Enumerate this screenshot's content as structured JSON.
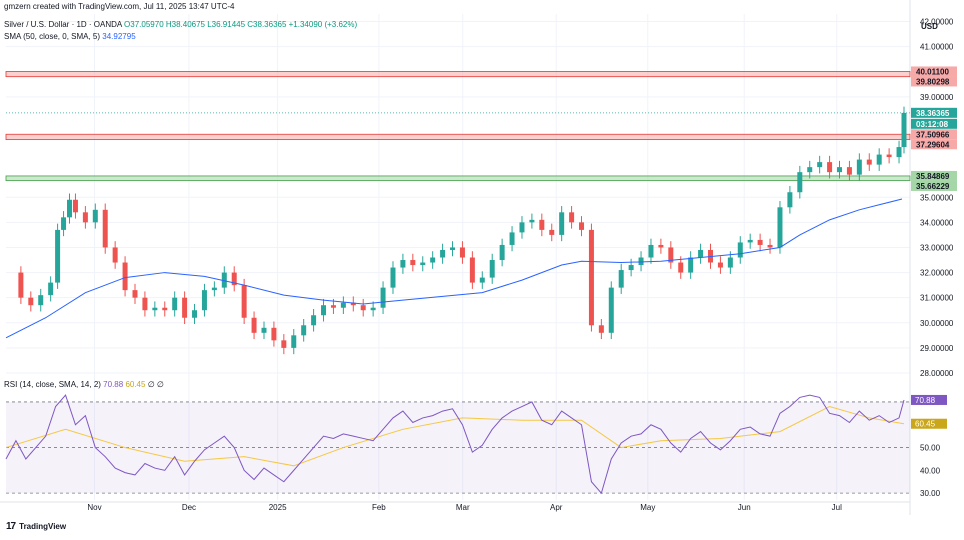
{
  "header": {
    "attribution": "gmzern created with TradingView.com, Jul 11, 2025 13:47 UTC-4",
    "symbol": "Silver / U.S. Dollar · 1D · OANDA",
    "ohlc": "O37.05970 H38.40675 L36.91445 C38.36365 +1.34090 (+3.62%)",
    "sma_label": "SMA (50, close, 0, SMA, 5)",
    "sma_value": "34.92795",
    "rsi_label": "RSI (14, close, SMA, 14, 2)",
    "rsi_value": "70.88",
    "rsi_ma_value": "60.45",
    "rsi_extra": "∅ ∅"
  },
  "currency": "USD",
  "footer": {
    "brand": "TradingView"
  },
  "colors": {
    "up": "#26a69a",
    "down": "#ef5350",
    "sma": "#2962ff",
    "rsi": "#7e57c2",
    "rsi_ma": "#f5c842",
    "resistance": "#f7a9a8",
    "support": "#a5d6a7"
  },
  "chart_data": {
    "type": "candlestick",
    "symbol": "Silver / U.S. Dollar · 1D · OANDA",
    "y_ticks": [
      "42.00000",
      "41.00000",
      "39.00000",
      "35.00000",
      "34.00000",
      "33.00000",
      "32.00000",
      "31.00000",
      "30.00000",
      "29.00000",
      "28.00000"
    ],
    "y_range": [
      27.8,
      42.3
    ],
    "x_labels": [
      "Nov",
      "Dec",
      "2025",
      "Feb",
      "Mar",
      "Apr",
      "May",
      "Jun",
      "Jul"
    ],
    "price_tags": [
      {
        "label": "40.01100",
        "kind": "resistance"
      },
      {
        "label": "39.80298",
        "kind": "resistance"
      },
      {
        "label": "38.36365",
        "kind": "current"
      },
      {
        "label": "03:12:08",
        "kind": "countdown"
      },
      {
        "label": "37.50966",
        "kind": "resistance"
      },
      {
        "label": "37.29604",
        "kind": "resistance"
      },
      {
        "label": "35.84869",
        "kind": "support"
      },
      {
        "label": "35.66229",
        "kind": "support"
      }
    ],
    "zones": [
      {
        "kind": "resistance",
        "low": 39.80298,
        "high": 40.011
      },
      {
        "kind": "resistance",
        "low": 37.29604,
        "high": 37.50966
      },
      {
        "kind": "support",
        "low": 35.66229,
        "high": 35.84869
      }
    ],
    "sma50": [
      [
        0,
        29.4
      ],
      [
        40,
        30.2
      ],
      [
        80,
        31.2
      ],
      [
        120,
        31.8
      ],
      [
        160,
        32.0
      ],
      [
        200,
        31.85
      ],
      [
        240,
        31.5
      ],
      [
        280,
        31.1
      ],
      [
        320,
        30.9
      ],
      [
        360,
        30.75
      ],
      [
        400,
        30.9
      ],
      [
        440,
        31.05
      ],
      [
        480,
        31.2
      ],
      [
        520,
        31.7
      ],
      [
        560,
        32.3
      ],
      [
        580,
        32.45
      ],
      [
        620,
        32.4
      ],
      [
        660,
        32.45
      ],
      [
        700,
        32.6
      ],
      [
        740,
        32.75
      ],
      [
        780,
        33.0
      ],
      [
        800,
        33.5
      ],
      [
        830,
        34.1
      ],
      [
        860,
        34.5
      ],
      [
        880,
        34.7
      ],
      [
        903,
        34.93
      ]
    ],
    "close": [
      [
        0,
        32.0
      ],
      [
        15,
        31.0
      ],
      [
        25,
        30.7
      ],
      [
        35,
        31.1
      ],
      [
        45,
        31.6
      ],
      [
        52,
        33.7
      ],
      [
        58,
        34.2
      ],
      [
        64,
        34.9
      ],
      [
        70,
        34.4
      ],
      [
        80,
        34.0
      ],
      [
        90,
        34.5
      ],
      [
        100,
        33.0
      ],
      [
        110,
        32.4
      ],
      [
        120,
        31.3
      ],
      [
        130,
        31.0
      ],
      [
        140,
        30.5
      ],
      [
        150,
        30.6
      ],
      [
        160,
        30.5
      ],
      [
        170,
        31.0
      ],
      [
        180,
        30.2
      ],
      [
        190,
        30.5
      ],
      [
        200,
        31.3
      ],
      [
        210,
        31.4
      ],
      [
        220,
        32.0
      ],
      [
        230,
        31.5
      ],
      [
        240,
        30.2
      ],
      [
        250,
        29.6
      ],
      [
        260,
        29.8
      ],
      [
        270,
        29.3
      ],
      [
        280,
        29.0
      ],
      [
        290,
        29.5
      ],
      [
        300,
        29.9
      ],
      [
        310,
        30.3
      ],
      [
        320,
        30.7
      ],
      [
        330,
        30.6
      ],
      [
        340,
        30.8
      ],
      [
        350,
        30.7
      ],
      [
        360,
        30.5
      ],
      [
        370,
        30.6
      ],
      [
        380,
        31.4
      ],
      [
        390,
        32.2
      ],
      [
        400,
        32.5
      ],
      [
        410,
        32.3
      ],
      [
        420,
        32.4
      ],
      [
        430,
        32.6
      ],
      [
        440,
        32.9
      ],
      [
        450,
        33.0
      ],
      [
        460,
        32.6
      ],
      [
        470,
        31.6
      ],
      [
        480,
        31.8
      ],
      [
        490,
        32.5
      ],
      [
        500,
        33.1
      ],
      [
        510,
        33.6
      ],
      [
        520,
        34.0
      ],
      [
        530,
        34.1
      ],
      [
        540,
        33.7
      ],
      [
        550,
        33.5
      ],
      [
        560,
        34.4
      ],
      [
        570,
        34.0
      ],
      [
        580,
        33.7
      ],
      [
        590,
        29.9
      ],
      [
        600,
        29.6
      ],
      [
        610,
        31.4
      ],
      [
        620,
        32.1
      ],
      [
        630,
        32.3
      ],
      [
        640,
        32.6
      ],
      [
        650,
        33.1
      ],
      [
        660,
        33.0
      ],
      [
        670,
        32.4
      ],
      [
        680,
        32.0
      ],
      [
        690,
        32.6
      ],
      [
        700,
        32.9
      ],
      [
        710,
        32.4
      ],
      [
        720,
        32.2
      ],
      [
        730,
        32.6
      ],
      [
        740,
        33.2
      ],
      [
        750,
        33.3
      ],
      [
        760,
        33.1
      ],
      [
        770,
        33.0
      ],
      [
        780,
        34.6
      ],
      [
        790,
        35.2
      ],
      [
        800,
        36.0
      ],
      [
        810,
        36.2
      ],
      [
        820,
        36.4
      ],
      [
        830,
        36.0
      ],
      [
        840,
        36.2
      ],
      [
        850,
        35.9
      ],
      [
        860,
        36.5
      ],
      [
        870,
        36.3
      ],
      [
        880,
        36.7
      ],
      [
        890,
        36.6
      ],
      [
        900,
        37.0
      ],
      [
        905,
        38.36
      ]
    ],
    "rsi_panel": {
      "title": "RSI (14, close, SMA, 14, 2)",
      "y_ticks": [
        "70.00",
        "60.00",
        "50.00",
        "40.00",
        "30.00"
      ],
      "y_range": [
        27.0,
        77.0
      ],
      "bands": [
        30,
        70
      ],
      "midline": 50,
      "rsi": [
        [
          0,
          45
        ],
        [
          10,
          53
        ],
        [
          20,
          45
        ],
        [
          30,
          50
        ],
        [
          40,
          55
        ],
        [
          50,
          68
        ],
        [
          60,
          73
        ],
        [
          70,
          60
        ],
        [
          80,
          64
        ],
        [
          90,
          50
        ],
        [
          100,
          46
        ],
        [
          110,
          41
        ],
        [
          120,
          39
        ],
        [
          130,
          38
        ],
        [
          140,
          43
        ],
        [
          150,
          41
        ],
        [
          160,
          40
        ],
        [
          170,
          46
        ],
        [
          180,
          38
        ],
        [
          190,
          44
        ],
        [
          200,
          49
        ],
        [
          210,
          52
        ],
        [
          220,
          55
        ],
        [
          230,
          50
        ],
        [
          240,
          40
        ],
        [
          250,
          36
        ],
        [
          260,
          41
        ],
        [
          270,
          38
        ],
        [
          280,
          35
        ],
        [
          290,
          40
        ],
        [
          300,
          45
        ],
        [
          310,
          50
        ],
        [
          320,
          55
        ],
        [
          330,
          54
        ],
        [
          340,
          56
        ],
        [
          350,
          55
        ],
        [
          360,
          54
        ],
        [
          370,
          53
        ],
        [
          380,
          58
        ],
        [
          390,
          63
        ],
        [
          400,
          66
        ],
        [
          410,
          61
        ],
        [
          420,
          63
        ],
        [
          430,
          64
        ],
        [
          440,
          66
        ],
        [
          450,
          67
        ],
        [
          460,
          60
        ],
        [
          470,
          48
        ],
        [
          480,
          51
        ],
        [
          490,
          58
        ],
        [
          500,
          63
        ],
        [
          510,
          66
        ],
        [
          520,
          68
        ],
        [
          530,
          70
        ],
        [
          540,
          62
        ],
        [
          550,
          60
        ],
        [
          560,
          66
        ],
        [
          570,
          63
        ],
        [
          580,
          60
        ],
        [
          590,
          35
        ],
        [
          600,
          30
        ],
        [
          610,
          45
        ],
        [
          620,
          52
        ],
        [
          630,
          55
        ],
        [
          640,
          56
        ],
        [
          650,
          60
        ],
        [
          660,
          58
        ],
        [
          670,
          52
        ],
        [
          680,
          48
        ],
        [
          690,
          54
        ],
        [
          700,
          57
        ],
        [
          710,
          52
        ],
        [
          720,
          49
        ],
        [
          730,
          53
        ],
        [
          740,
          58
        ],
        [
          750,
          59
        ],
        [
          760,
          56
        ],
        [
          770,
          55
        ],
        [
          780,
          65
        ],
        [
          790,
          68
        ],
        [
          800,
          72
        ],
        [
          810,
          73
        ],
        [
          820,
          72
        ],
        [
          830,
          65
        ],
        [
          840,
          64
        ],
        [
          850,
          61
        ],
        [
          860,
          66
        ],
        [
          870,
          62
        ],
        [
          880,
          64
        ],
        [
          890,
          61
        ],
        [
          900,
          63
        ],
        [
          905,
          70.88
        ]
      ],
      "rsi_ma": [
        [
          0,
          50
        ],
        [
          60,
          58
        ],
        [
          120,
          50
        ],
        [
          180,
          44
        ],
        [
          240,
          46
        ],
        [
          290,
          42
        ],
        [
          340,
          50
        ],
        [
          400,
          58
        ],
        [
          460,
          63
        ],
        [
          520,
          62
        ],
        [
          580,
          62
        ],
        [
          620,
          50
        ],
        [
          660,
          53
        ],
        [
          720,
          54
        ],
        [
          780,
          57
        ],
        [
          830,
          68
        ],
        [
          870,
          63
        ],
        [
          905,
          60.45
        ]
      ]
    }
  }
}
